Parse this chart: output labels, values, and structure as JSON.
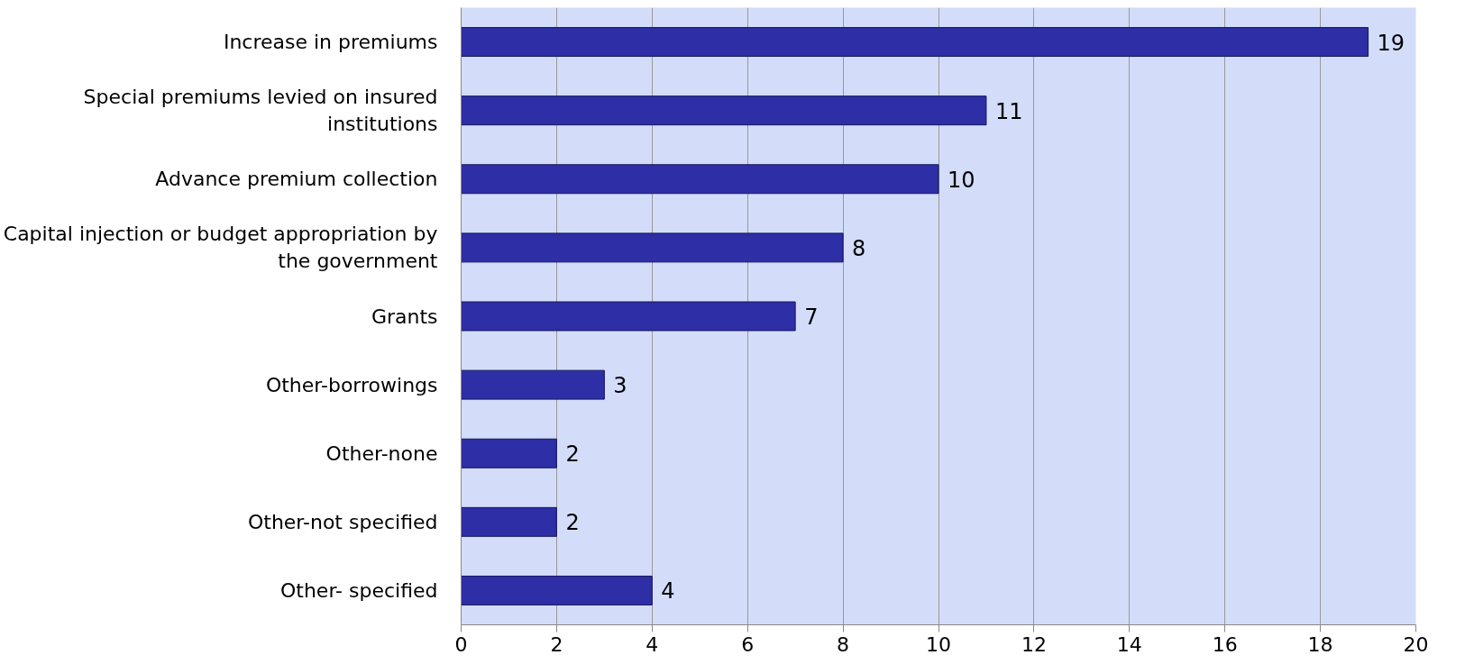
{
  "chart_data": {
    "type": "bar",
    "orientation": "horizontal",
    "categories": [
      "Increase in premiums",
      "Special premiums levied on insured institutions",
      "Advance premium collection",
      "Capital injection or budget appropriation by the government",
      "Grants",
      "Other-borrowings",
      "Other-none",
      "Other-not specified",
      "Other- specified"
    ],
    "values": [
      19,
      11,
      10,
      8,
      7,
      3,
      2,
      2,
      4
    ],
    "color": "#2e2ea6",
    "xlim": [
      0,
      20
    ],
    "xticks": [
      0,
      2,
      4,
      6,
      8,
      10,
      12,
      14,
      16,
      18,
      20
    ],
    "grid": "x",
    "data_labels": true
  }
}
